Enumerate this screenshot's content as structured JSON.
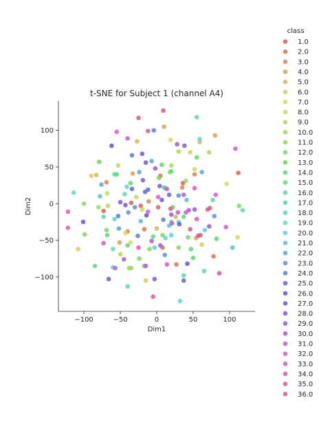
{
  "chart_data": {
    "type": "scatter",
    "title": "t-SNE for Subject 1 (channel A4)",
    "xlabel": "Dim1",
    "ylabel": "Dim2",
    "xlim": [
      -135,
      135
    ],
    "ylim": [
      -147,
      140
    ],
    "xticks": [
      -100,
      -50,
      0,
      50,
      100
    ],
    "yticks": [
      -100,
      -50,
      0,
      50,
      100
    ],
    "grid": false,
    "legend": {
      "title": "class",
      "placement": "right"
    },
    "series": [
      {
        "name": "1.0",
        "color": "#db5f57",
        "x": [
          -22,
          112,
          73,
          2,
          -73,
          36,
          -35
        ],
        "y": [
          -3,
          42,
          -6,
          -5,
          -10,
          28,
          1
        ]
      },
      {
        "name": "2.0",
        "color": "#db7257",
        "x": [
          -17,
          78,
          5,
          27,
          8
        ],
        "y": [
          -35,
          -72,
          38,
          -83,
          -60
        ]
      },
      {
        "name": "3.0",
        "color": "#db8457",
        "x": [
          35,
          -40,
          -69,
          52,
          -11
        ],
        "y": [
          22,
          -38,
          29,
          40,
          3
        ]
      },
      {
        "name": "4.0",
        "color": "#dba057",
        "x": [
          80,
          10,
          54,
          -51,
          -33
        ],
        "y": [
          93,
          105,
          -47,
          -53,
          41
        ]
      },
      {
        "name": "5.0",
        "color": "#dbb557",
        "x": [
          -83,
          -27,
          59,
          26,
          0
        ],
        "y": [
          39,
          85,
          84,
          -18,
          -34
        ]
      },
      {
        "name": "6.0",
        "color": "#dbcb57",
        "x": [
          -108,
          -90,
          46,
          62,
          -15
        ],
        "y": [
          -62,
          38,
          70,
          -56,
          -105
        ]
      },
      {
        "name": "7.0",
        "color": "#d3db57",
        "x": [
          96,
          111,
          19,
          -43,
          -36
        ],
        "y": [
          27,
          -46,
          87,
          -40,
          -53
        ]
      },
      {
        "name": "8.0",
        "color": "#c4db57",
        "x": [
          -20,
          -68,
          52,
          -28,
          -53
        ],
        "y": [
          -8,
          14,
          47,
          9,
          52
        ]
      },
      {
        "name": "9.0",
        "color": "#afdb57",
        "x": [
          -50,
          20,
          72,
          30,
          -67
        ],
        "y": [
          -69,
          52,
          70,
          71,
          -3
        ]
      },
      {
        "name": "10.0",
        "color": "#9bdb57",
        "x": [
          -38,
          18,
          -35,
          40,
          -80
        ],
        "y": [
          -88,
          43,
          -88,
          31,
          -5
        ]
      },
      {
        "name": "11.0",
        "color": "#84db57",
        "x": [
          113,
          -10,
          -100,
          30,
          8
        ],
        "y": [
          -3,
          -62,
          0,
          -60,
          -43
        ]
      },
      {
        "name": "12.0",
        "color": "#75db57",
        "x": [
          -99,
          -24,
          -69,
          3,
          43
        ],
        "y": [
          -42,
          -75,
          -36,
          35,
          -46
        ]
      },
      {
        "name": "13.0",
        "color": "#62db57",
        "x": [
          -79,
          55,
          7,
          -36,
          22
        ],
        "y": [
          57,
          63,
          53,
          28,
          -5
        ]
      },
      {
        "name": "14.0",
        "color": "#57db62",
        "x": [
          -17,
          10,
          -55,
          82,
          50
        ],
        "y": [
          -85,
          22,
          40,
          -48,
          -74
        ]
      },
      {
        "name": "15.0",
        "color": "#57db79",
        "x": [
          47,
          -40,
          -68,
          20,
          37
        ],
        "y": [
          -62,
          -57,
          -43,
          44,
          -18
        ]
      },
      {
        "name": "16.0",
        "color": "#57db90",
        "x": [
          -85,
          77,
          -58,
          12,
          -5
        ],
        "y": [
          -85,
          5,
          40,
          21,
          -45
        ]
      },
      {
        "name": "17.0",
        "color": "#57dba5",
        "x": [
          55,
          -40,
          37,
          20,
          -73
        ],
        "y": [
          118,
          -113,
          -98,
          -25,
          -18
        ]
      },
      {
        "name": "18.0",
        "color": "#57dbbb",
        "x": [
          118,
          -58,
          65,
          -60,
          -44
        ],
        "y": [
          -9,
          -21,
          -92,
          -87,
          13
        ]
      },
      {
        "name": "19.0",
        "color": "#57dbd0",
        "x": [
          -114,
          -60,
          59,
          20,
          30
        ],
        "y": [
          15,
          -62,
          88,
          -43,
          -25
        ]
      },
      {
        "name": "20.0",
        "color": "#57d3db",
        "x": [
          -41,
          32,
          12,
          -3,
          66
        ],
        "y": [
          23,
          -133,
          -47,
          -60,
          -36
        ]
      },
      {
        "name": "21.0",
        "color": "#57bedb",
        "x": [
          -78,
          104,
          41,
          17,
          -22
        ],
        "y": [
          10,
          -60,
          5,
          -30,
          -24
        ]
      },
      {
        "name": "22.0",
        "color": "#57a9db",
        "x": [
          -76,
          -52,
          -24,
          62,
          -7
        ],
        "y": [
          26,
          -34,
          43,
          43,
          58
        ]
      },
      {
        "name": "23.0",
        "color": "#5793db",
        "x": [
          -39,
          79,
          30,
          -30,
          11
        ],
        "y": [
          -12,
          -17,
          11,
          -5,
          -70
        ]
      },
      {
        "name": "24.0",
        "color": "#577edb",
        "x": [
          -53,
          -34,
          9,
          -26,
          -4
        ],
        "y": [
          -17,
          66,
          -22,
          -44,
          100
        ]
      },
      {
        "name": "25.0",
        "color": "#5768db",
        "x": [
          -34,
          -12,
          17,
          37,
          -16
        ],
        "y": [
          20,
          19,
          12,
          -105,
          16
        ]
      },
      {
        "name": "26.0",
        "color": "#5957db",
        "x": [
          -101,
          -62,
          31,
          -14,
          42
        ],
        "y": [
          -25,
          79,
          -28,
          -16,
          -82
        ]
      },
      {
        "name": "27.0",
        "color": "#6e57db",
        "x": [
          -66,
          -20,
          -15,
          -43,
          7
        ],
        "y": [
          -103,
          68,
          56,
          -2,
          5
        ]
      },
      {
        "name": "28.0",
        "color": "#8457db",
        "x": [
          -3,
          38,
          -50,
          4,
          -19
        ],
        "y": [
          -103,
          79,
          2,
          24,
          32
        ]
      },
      {
        "name": "29.0",
        "color": "#9957db",
        "x": [
          52,
          72,
          -2,
          20,
          28
        ],
        "y": [
          -8,
          -31,
          48,
          -15,
          81
        ]
      },
      {
        "name": "30.0",
        "color": "#ae57db",
        "x": [
          -7,
          44,
          -45,
          5,
          37
        ],
        "y": [
          -51,
          -9,
          -76,
          -57,
          12
        ]
      },
      {
        "name": "31.0",
        "color": "#c457db",
        "x": [
          -57,
          -40,
          14,
          -15,
          29
        ],
        "y": [
          -88,
          89,
          20,
          -85,
          -12
        ]
      },
      {
        "name": "32.0",
        "color": "#d957db",
        "x": [
          108,
          -55,
          81,
          2,
          -12
        ],
        "y": [
          75,
          98,
          12,
          9,
          -11
        ]
      },
      {
        "name": "33.0",
        "color": "#db57c5",
        "x": [
          -122,
          -122,
          95,
          52,
          40
        ],
        "y": [
          -11,
          -33,
          -32,
          21,
          -12
        ]
      },
      {
        "name": "34.0",
        "color": "#db57b0",
        "x": [
          -73,
          55,
          -25,
          21,
          14
        ],
        "y": [
          -54,
          -21,
          -60,
          -27,
          -83
        ]
      },
      {
        "name": "35.0",
        "color": "#db579a",
        "x": [
          -12,
          86,
          -5,
          46,
          19
        ],
        "y": [
          99,
          -95,
          -127,
          -35,
          -7
        ]
      },
      {
        "name": "36.0",
        "color": "#db5785",
        "x": [
          -25,
          60,
          9,
          57,
          70
        ],
        "y": [
          117,
          -43,
          127,
          -44,
          -8
        ]
      }
    ]
  }
}
